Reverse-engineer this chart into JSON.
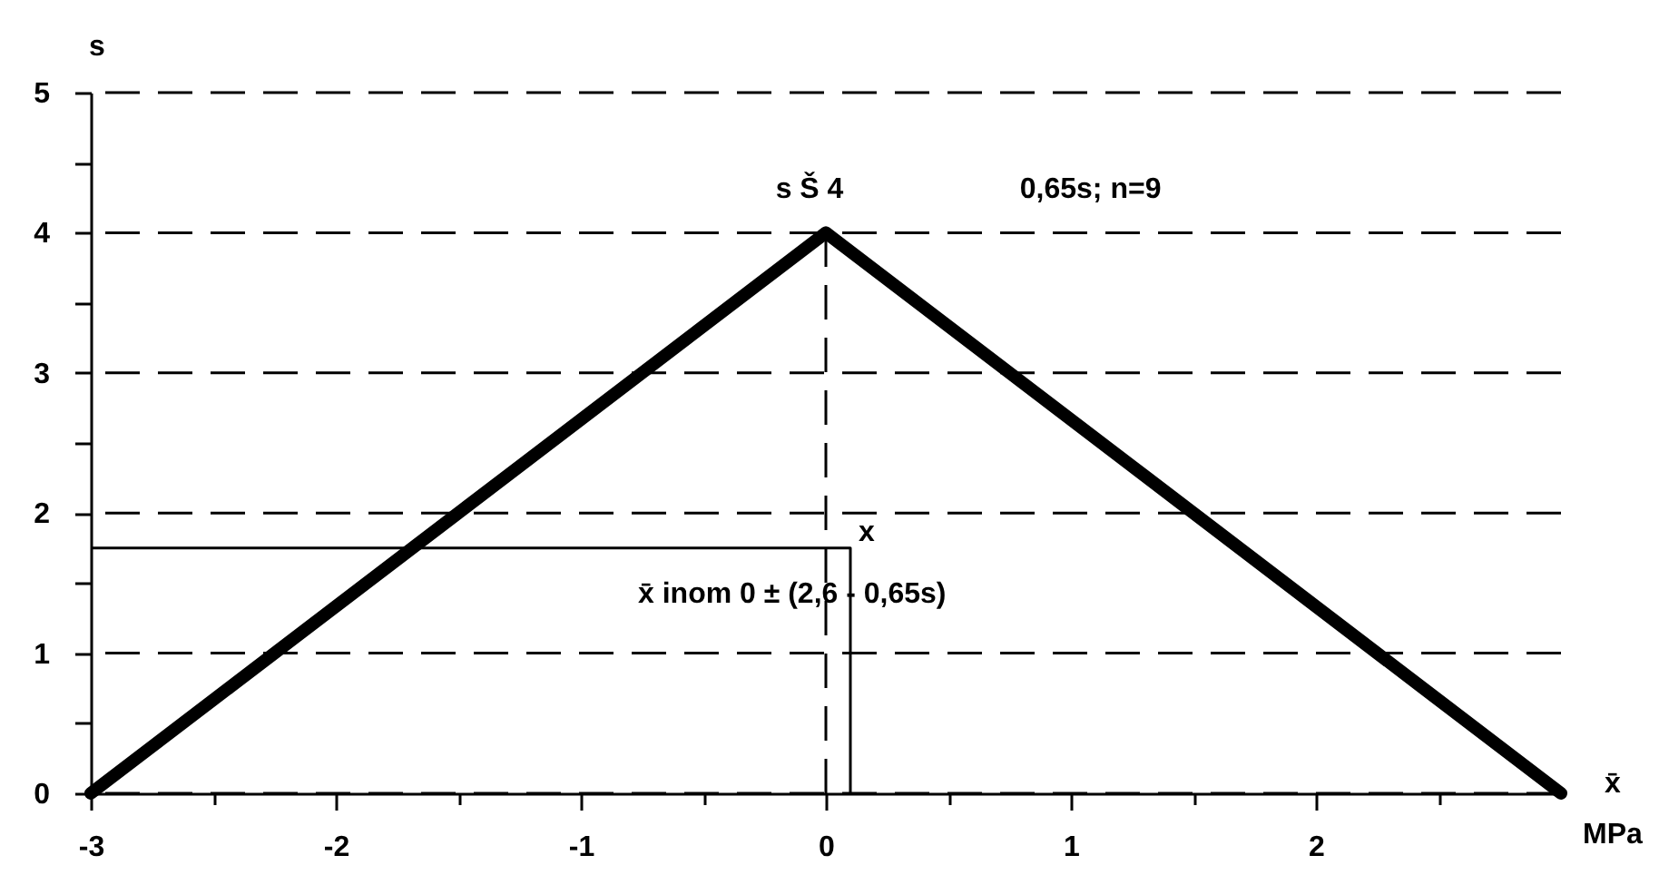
{
  "chart_data": {
    "type": "line",
    "xlabel": "x̄\nMPa",
    "ylabel": "s",
    "xlim": [
      -3,
      3
    ],
    "ylim": [
      0,
      5
    ],
    "xticks": [
      -3,
      {
        "value": -2.5,
        "label": null
      },
      -2,
      {
        "value": -1.5,
        "label": null
      },
      -1,
      {
        "value": -0.5,
        "label": null
      },
      0,
      {
        "value": 0.5,
        "label": null
      },
      1,
      {
        "value": 1.5,
        "label": null
      },
      2,
      {
        "value": 2.5,
        "label": null
      }
    ],
    "yticks": [
      0,
      {
        "value": 0.5,
        "label": null
      },
      1,
      {
        "value": 1.5,
        "label": null
      },
      2,
      {
        "value": 2.5,
        "label": null
      },
      3,
      {
        "value": 3.5,
        "label": null
      },
      4,
      {
        "value": 4.5,
        "label": null
      },
      5
    ],
    "grid": "y",
    "line_style": "solid",
    "series": [
      {
        "color": "#000000",
        "x": [
          -3,
          0,
          3
        ],
        "values": [
          0,
          4,
          0
        ]
      },
      {
        "color": "#000000",
        "x": [
          -3,
          0.1,
          0.1
        ],
        "values": [
          1.75,
          1.75,
          0
        ]
      }
    ],
    "ref_lines": [
      {
        "axis": "x",
        "value": 0,
        "color": "#000000",
        "line_style": "dashed"
      }
    ],
    "annotations": [
      {
        "text": "s Š 4",
        "x": 0,
        "y": 4
      },
      "0,65s; n=9",
      {
        "text": "x",
        "x": 0.1,
        "y": 1.75
      },
      "x̄ inom 0 ± (2,6 - 0,65s)"
    ]
  }
}
